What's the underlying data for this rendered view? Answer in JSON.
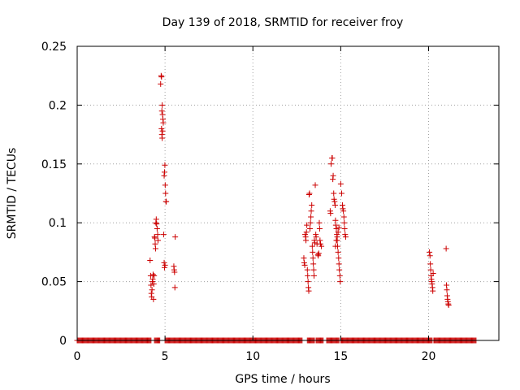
{
  "chart_data": {
    "type": "scatter",
    "title": "Day 139 of 2018, SRMTID for receiver froy",
    "xlabel": "GPS time / hours",
    "ylabel": "SRMTID / TECUs",
    "xlim": [
      0,
      24
    ],
    "ylim": [
      0,
      0.25
    ],
    "xticks": [
      0,
      5,
      10,
      15,
      20
    ],
    "xtick_labels": [
      "0",
      "5",
      "10",
      "15",
      "20"
    ],
    "yticks": [
      0,
      0.05,
      0.1,
      0.15,
      0.2,
      0.25
    ],
    "ytick_labels": [
      "0",
      "0.05",
      "0.1",
      "0.15",
      "0.2",
      "0.25"
    ],
    "grid": true,
    "marker": "+",
    "color": "#cc0000",
    "baseline": {
      "y": 0,
      "ranges": [
        [
          0.0,
          4.2
        ],
        [
          4.4,
          4.7
        ],
        [
          5.0,
          12.8
        ],
        [
          13.1,
          13.5
        ],
        [
          13.6,
          14.0
        ],
        [
          14.2,
          14.9
        ],
        [
          15.0,
          20.2
        ],
        [
          20.3,
          22.7
        ]
      ],
      "step": 0.05
    },
    "points": [
      [
        4.15,
        0.068
      ],
      [
        4.18,
        0.055
      ],
      [
        4.2,
        0.047
      ],
      [
        4.22,
        0.04
      ],
      [
        4.24,
        0.037
      ],
      [
        4.26,
        0.043
      ],
      [
        4.28,
        0.05
      ],
      [
        4.3,
        0.052
      ],
      [
        4.32,
        0.056
      ],
      [
        4.34,
        0.035
      ],
      [
        4.36,
        0.048
      ],
      [
        4.38,
        0.055
      ],
      [
        4.4,
        0.088
      ],
      [
        4.42,
        0.087
      ],
      [
        4.44,
        0.082
      ],
      [
        4.46,
        0.078
      ],
      [
        4.48,
        0.1
      ],
      [
        4.5,
        0.103
      ],
      [
        4.52,
        0.099
      ],
      [
        4.55,
        0.095
      ],
      [
        4.58,
        0.09
      ],
      [
        4.6,
        0.085
      ],
      [
        4.75,
        0.218
      ],
      [
        4.78,
        0.225
      ],
      [
        4.8,
        0.224
      ],
      [
        4.82,
        0.195
      ],
      [
        4.84,
        0.2
      ],
      [
        4.86,
        0.192
      ],
      [
        4.88,
        0.188
      ],
      [
        4.8,
        0.18
      ],
      [
        4.82,
        0.175
      ],
      [
        4.84,
        0.172
      ],
      [
        4.86,
        0.178
      ],
      [
        4.9,
        0.185
      ],
      [
        4.95,
        0.14
      ],
      [
        4.97,
        0.143
      ],
      [
        4.99,
        0.149
      ],
      [
        5.01,
        0.132
      ],
      [
        5.03,
        0.125
      ],
      [
        5.05,
        0.118
      ],
      [
        5.07,
        0.118
      ],
      [
        4.92,
        0.09
      ],
      [
        4.95,
        0.066
      ],
      [
        4.97,
        0.062
      ],
      [
        5.0,
        0.064
      ],
      [
        5.5,
        0.063
      ],
      [
        5.52,
        0.06
      ],
      [
        5.54,
        0.058
      ],
      [
        5.56,
        0.045
      ],
      [
        5.58,
        0.088
      ],
      [
        12.9,
        0.07
      ],
      [
        12.92,
        0.066
      ],
      [
        12.95,
        0.064
      ],
      [
        12.97,
        0.09
      ],
      [
        13.0,
        0.088
      ],
      [
        13.02,
        0.085
      ],
      [
        13.05,
        0.092
      ],
      [
        13.07,
        0.098
      ],
      [
        13.1,
        0.06
      ],
      [
        13.12,
        0.055
      ],
      [
        13.14,
        0.05
      ],
      [
        13.16,
        0.045
      ],
      [
        13.18,
        0.042
      ],
      [
        13.2,
        0.124
      ],
      [
        13.22,
        0.125
      ],
      [
        13.25,
        0.095
      ],
      [
        13.28,
        0.1
      ],
      [
        13.3,
        0.105
      ],
      [
        13.32,
        0.11
      ],
      [
        13.35,
        0.115
      ],
      [
        13.38,
        0.08
      ],
      [
        13.4,
        0.075
      ],
      [
        13.42,
        0.07
      ],
      [
        13.44,
        0.065
      ],
      [
        13.46,
        0.06
      ],
      [
        13.48,
        0.055
      ],
      [
        13.5,
        0.085
      ],
      [
        13.52,
        0.083
      ],
      [
        13.55,
        0.132
      ],
      [
        13.58,
        0.09
      ],
      [
        13.6,
        0.088
      ],
      [
        13.65,
        0.082
      ],
      [
        13.7,
        0.073
      ],
      [
        13.72,
        0.072
      ],
      [
        13.75,
        0.074
      ],
      [
        13.78,
        0.1
      ],
      [
        13.8,
        0.095
      ],
      [
        13.82,
        0.085
      ],
      [
        13.85,
        0.082
      ],
      [
        13.9,
        0.08
      ],
      [
        14.4,
        0.11
      ],
      [
        14.42,
        0.108
      ],
      [
        14.45,
        0.15
      ],
      [
        14.5,
        0.155
      ],
      [
        14.52,
        0.155
      ],
      [
        14.55,
        0.137
      ],
      [
        14.57,
        0.14
      ],
      [
        14.6,
        0.125
      ],
      [
        14.62,
        0.12
      ],
      [
        14.65,
        0.118
      ],
      [
        14.68,
        0.115
      ],
      [
        14.7,
        0.102
      ],
      [
        14.72,
        0.098
      ],
      [
        14.75,
        0.095
      ],
      [
        14.78,
        0.09
      ],
      [
        14.8,
        0.085
      ],
      [
        14.82,
        0.08
      ],
      [
        14.85,
        0.075
      ],
      [
        14.88,
        0.07
      ],
      [
        14.9,
        0.065
      ],
      [
        14.92,
        0.06
      ],
      [
        14.95,
        0.055
      ],
      [
        14.97,
        0.05
      ],
      [
        14.7,
        0.08
      ],
      [
        14.75,
        0.085
      ],
      [
        14.8,
        0.088
      ],
      [
        14.85,
        0.092
      ],
      [
        14.9,
        0.096
      ],
      [
        15.0,
        0.133
      ],
      [
        15.05,
        0.125
      ],
      [
        15.1,
        0.115
      ],
      [
        15.12,
        0.112
      ],
      [
        15.15,
        0.11
      ],
      [
        15.18,
        0.105
      ],
      [
        15.2,
        0.1
      ],
      [
        15.22,
        0.095
      ],
      [
        15.25,
        0.09
      ],
      [
        15.28,
        0.088
      ],
      [
        20.05,
        0.075
      ],
      [
        20.08,
        0.072
      ],
      [
        20.1,
        0.065
      ],
      [
        20.12,
        0.06
      ],
      [
        20.14,
        0.055
      ],
      [
        20.16,
        0.052
      ],
      [
        20.18,
        0.05
      ],
      [
        20.2,
        0.048
      ],
      [
        20.22,
        0.045
      ],
      [
        20.24,
        0.042
      ],
      [
        20.26,
        0.057
      ],
      [
        21.0,
        0.078
      ],
      [
        21.02,
        0.047
      ],
      [
        21.04,
        0.043
      ],
      [
        21.06,
        0.038
      ],
      [
        21.08,
        0.035
      ],
      [
        21.1,
        0.033
      ],
      [
        21.12,
        0.031
      ],
      [
        21.14,
        0.03
      ]
    ]
  }
}
